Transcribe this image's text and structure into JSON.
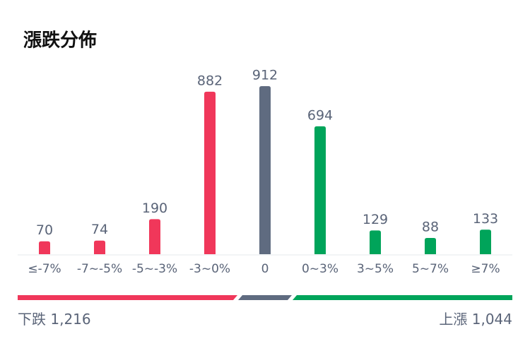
{
  "chart_data": {
    "type": "bar",
    "title": "漲跌分佈",
    "categories": [
      "≤-7%",
      "-7~-5%",
      "-5~-3%",
      "-3~0%",
      "0",
      "0~3%",
      "3~5%",
      "5~7%",
      "≥7%"
    ],
    "values": [
      70,
      74,
      190,
      882,
      912,
      694,
      129,
      88,
      133
    ],
    "colors": [
      "#f0375a",
      "#f0375a",
      "#f0375a",
      "#f0375a",
      "#5f6b80",
      "#00a45a",
      "#00a45a",
      "#00a45a",
      "#00a45a"
    ],
    "summary": {
      "down": {
        "label": "下跌",
        "value": "1,216"
      },
      "up": {
        "label": "上漲",
        "value": "1,044"
      }
    }
  }
}
